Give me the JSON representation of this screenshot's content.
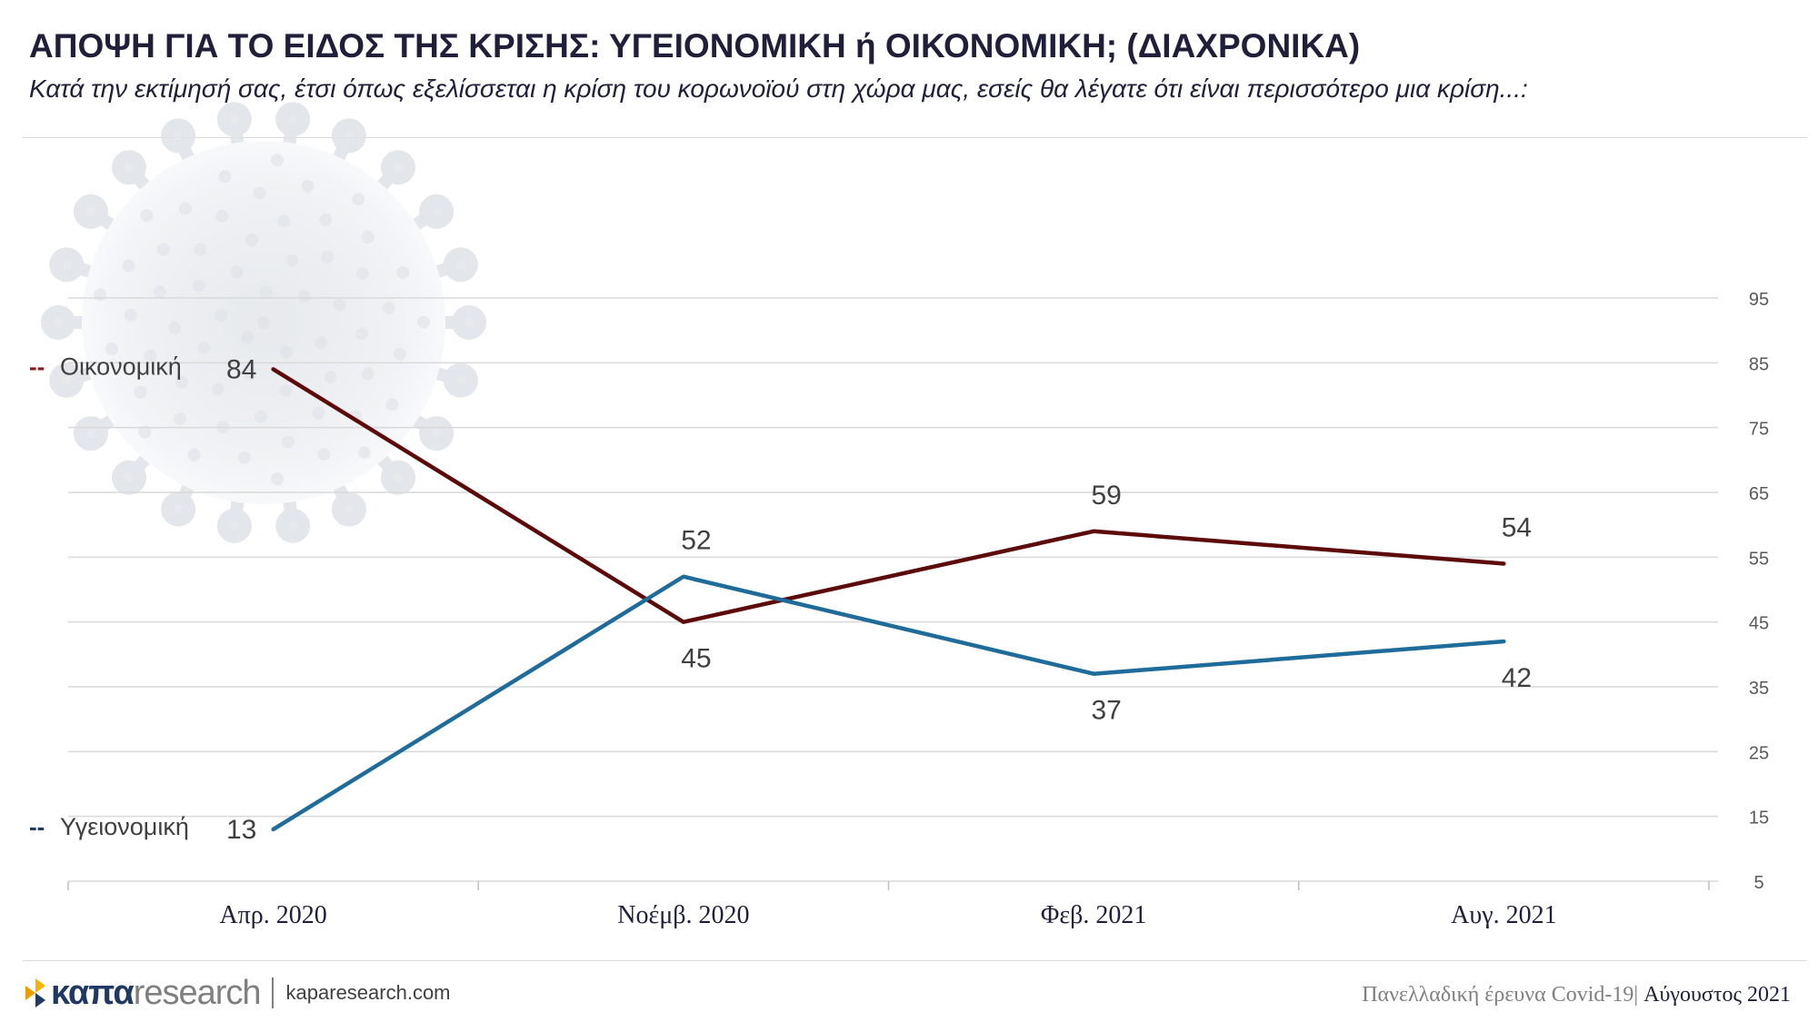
{
  "header": {
    "title": "ΑΠΟΨΗ ΓΙΑ ΤΟ ΕΙΔΟΣ ΤΗΣ ΚΡΙΣΗΣ: ΥΓΕΙΟΝΟΜΙΚΗ ή ΟΙΚΟΝΟΜΙΚΗ; (ΔΙΑΧΡΟΝΙΚΑ)",
    "subtitle": "Κατά την εκτίμησή σας, έτσι όπως εξελίσσεται η κρίση του κορωνοϊού στη χώρα μας, εσείς θα λέγατε ότι είναι περισσότερο μια κρίση...:"
  },
  "chart_data": {
    "type": "line",
    "categories": [
      "Απρ. 2020",
      "Νοέμβ. 2020",
      "Φεβ. 2021",
      "Αυγ. 2021"
    ],
    "series": [
      {
        "name": "Οικονομική",
        "values": [
          84,
          45,
          59,
          54
        ],
        "color": "#5c0a0a",
        "legend_color": "#8b1a1a"
      },
      {
        "name": "Υγειονομική",
        "values": [
          13,
          52,
          37,
          42
        ],
        "color": "#1f6b99",
        "legend_color": "#1f3864"
      }
    ],
    "y_ticks": [
      5,
      15,
      25,
      35,
      45,
      55,
      65,
      75,
      85,
      95
    ],
    "ylim": [
      5,
      95
    ],
    "y_axis_side": "right",
    "grid": true,
    "legend_marker": "--"
  },
  "footer": {
    "brand_bold": "καπα",
    "brand_light": "research",
    "website": "kaparesearch.com",
    "survey_label": "Πανελλαδική έρευνα Covid-19|",
    "survey_month": "Αύγουστος 2021"
  },
  "colors": {
    "title": "#1f1f3a",
    "grid": "#d9d9d9",
    "axis_text": "#595959",
    "data_label": "#404040"
  },
  "icons": {
    "background": "virus-illustration-icon",
    "logo": "kapa-logo-icon"
  }
}
